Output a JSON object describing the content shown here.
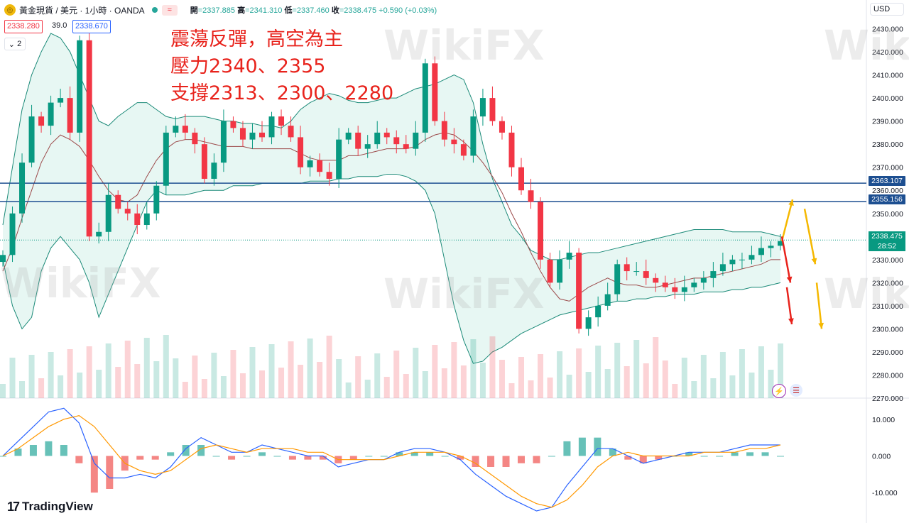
{
  "header": {
    "symbol": "黃金現貨 / 美元 · 1小時 · OANDA",
    "open_label": "開",
    "open": "=2337.885",
    "high_label": "高",
    "high": "=2341.310",
    "low_label": "低",
    "low": "=2337.460",
    "close_label": "收",
    "close": "=2338.475",
    "change": "+0.590 (+0.03%)",
    "approx_symbol": "≈",
    "sell_price": "2338.280",
    "spread": "39.0",
    "buy_price": "2338.670",
    "indicator_count": "2",
    "currency": "USD"
  },
  "annotation": {
    "line1": "震蕩反彈，高空為主",
    "line2": "壓力2340、2355",
    "line3": "支撐2313、2300、2280"
  },
  "price_labels": {
    "resistance_high": "2363.107",
    "resistance_low": "2355.156",
    "current": "2338.475",
    "countdown": "28:52"
  },
  "branding": {
    "tradingview": "TradingView",
    "watermark": "WikiFX"
  },
  "colors": {
    "up": "#089981",
    "down": "#f23645",
    "bb": "#1b8a78",
    "ma": "#9c4a4a",
    "hline": "#1d4f91",
    "macd": "#2962ff",
    "signal": "#ff9800",
    "arrow_red": "#e8231c",
    "arrow_yellow": "#f5b800"
  },
  "chart_data": {
    "type": "candlestick",
    "title": "黃金現貨 / 美元 · 1小時 · OANDA",
    "ylim": [
      2270,
      2432
    ],
    "y_ticks": [
      "2430.000",
      "2420.000",
      "2410.000",
      "2400.000",
      "2390.000",
      "2380.000",
      "2370.000",
      "2360.000",
      "2350.000",
      "2340.000",
      "2330.000",
      "2320.000",
      "2310.000",
      "2300.000",
      "2290.000",
      "2280.000",
      "2270.000"
    ],
    "series": [
      {
        "name": "close",
        "values": [
          2332,
          2350,
          2372,
          2392,
          2388,
          2398,
          2400,
          2385,
          2425,
          2340,
          2342,
          2358,
          2352,
          2350,
          2345,
          2350,
          2362,
          2385,
          2388,
          2385,
          2380,
          2365,
          2372,
          2390,
          2387,
          2382,
          2385,
          2383,
          2392,
          2388,
          2383,
          2370,
          2373,
          2368,
          2365,
          2382,
          2385,
          2378,
          2380,
          2385,
          2383,
          2380,
          2378,
          2385,
          2415,
          2390,
          2382,
          2380,
          2375,
          2392,
          2400,
          2390,
          2385,
          2370,
          2360,
          2355,
          2330,
          2320,
          2330,
          2333,
          2300,
          2305,
          2310,
          2315,
          2328,
          2325,
          2325,
          2322,
          2320,
          2318,
          2316,
          2318,
          2320,
          2322,
          2325,
          2328,
          2330,
          2330,
          2332,
          2335,
          2336,
          2338
        ]
      },
      {
        "name": "middle_band",
        "values": [
          2325,
          2335,
          2348,
          2360,
          2372,
          2380,
          2384,
          2382,
          2379,
          2373,
          2366,
          2360,
          2356,
          2355,
          2358,
          2366,
          2373,
          2378,
          2381,
          2382,
          2382,
          2381,
          2380,
          2379,
          2379,
          2379,
          2378,
          2378,
          2378,
          2378,
          2378,
          2376,
          2374,
          2373,
          2373,
          2373,
          2375,
          2375,
          2376,
          2377,
          2378,
          2378,
          2378,
          2379,
          2382,
          2384,
          2385,
          2384,
          2381,
          2377,
          2372,
          2366,
          2359,
          2350,
          2342,
          2333,
          2325,
          2318,
          2313,
          2312,
          2315,
          2318,
          2320,
          2322,
          2320,
          2319,
          2319,
          2318,
          2318,
          2319,
          2320,
          2321,
          2322,
          2322,
          2323,
          2324,
          2325,
          2326,
          2327,
          2328,
          2330,
          2330
        ]
      },
      {
        "name": "upper_band",
        "values": [
          2345,
          2370,
          2395,
          2410,
          2420,
          2428,
          2426,
          2420,
          2410,
          2400,
          2390,
          2388,
          2392,
          2395,
          2398,
          2398,
          2395,
          2392,
          2391,
          2392,
          2392,
          2392,
          2391,
          2390,
          2390,
          2389,
          2389,
          2388,
          2388,
          2387,
          2390,
          2395,
          2398,
          2400,
          2402,
          2401,
          2399,
          2398,
          2398,
          2399,
          2400,
          2400,
          2402,
          2404,
          2405,
          2406,
          2408,
          2410,
          2408,
          2398,
          2380,
          2365,
          2355,
          2345,
          2340,
          2334,
          2332,
          2330,
          2330,
          2331,
          2332,
          2333,
          2333,
          2334,
          2335,
          2336,
          2337,
          2338,
          2339,
          2340,
          2341,
          2342,
          2343,
          2343,
          2343,
          2343,
          2342,
          2342,
          2342,
          2342,
          2341,
          2340
        ]
      },
      {
        "name": "lower_band",
        "values": [
          2330,
          2310,
          2300,
          2305,
          2325,
          2335,
          2340,
          2335,
          2330,
          2320,
          2305,
          2315,
          2325,
          2335,
          2345,
          2355,
          2360,
          2358,
          2358,
          2358,
          2359,
          2360,
          2360,
          2360,
          2362,
          2362,
          2362,
          2363,
          2363,
          2363,
          2363,
          2363,
          2364,
          2364,
          2364,
          2365,
          2365,
          2366,
          2366,
          2366,
          2367,
          2367,
          2366,
          2364,
          2360,
          2350,
          2330,
          2310,
          2295,
          2285,
          2286,
          2290,
          2292,
          2295,
          2298,
          2300,
          2302,
          2304,
          2306,
          2307,
          2308,
          2309,
          2310,
          2311,
          2312,
          2312,
          2313,
          2313,
          2314,
          2314,
          2315,
          2315,
          2315,
          2316,
          2316,
          2316,
          2317,
          2317,
          2318,
          2318,
          2319,
          2320
        ]
      }
    ],
    "resistance_levels": [
      2363.107,
      2355.156
    ],
    "current_price": 2338.475,
    "macd": {
      "ylim": [
        -15,
        15
      ],
      "y_ticks": [
        "10.000",
        "0.000",
        "-10.000"
      ],
      "macd_line": [
        0,
        4,
        8,
        12,
        13,
        9,
        -2,
        -6,
        -6,
        -5,
        -6,
        -3,
        2,
        5,
        3,
        1,
        1,
        3,
        2,
        1,
        0,
        0,
        -3,
        -2,
        -1,
        -1,
        1,
        2,
        2,
        1,
        -1,
        -5,
        -8,
        -11,
        -13,
        -15,
        -14,
        -8,
        -3,
        2,
        2,
        0,
        -2,
        -1,
        0,
        1,
        1,
        1,
        2,
        3,
        3,
        3
      ],
      "signal_line": [
        0,
        2,
        5,
        8,
        10,
        11,
        8,
        3,
        -2,
        -4,
        -5,
        -4,
        -1,
        2,
        3,
        2,
        1,
        2,
        2,
        2,
        1,
        1,
        -1,
        -1,
        -1,
        -1,
        0,
        1,
        1,
        1,
        0,
        -2,
        -5,
        -8,
        -11,
        -13,
        -14,
        -12,
        -8,
        -3,
        0,
        1,
        0,
        0,
        0,
        0,
        1,
        1,
        1,
        2,
        2,
        3
      ]
    }
  }
}
